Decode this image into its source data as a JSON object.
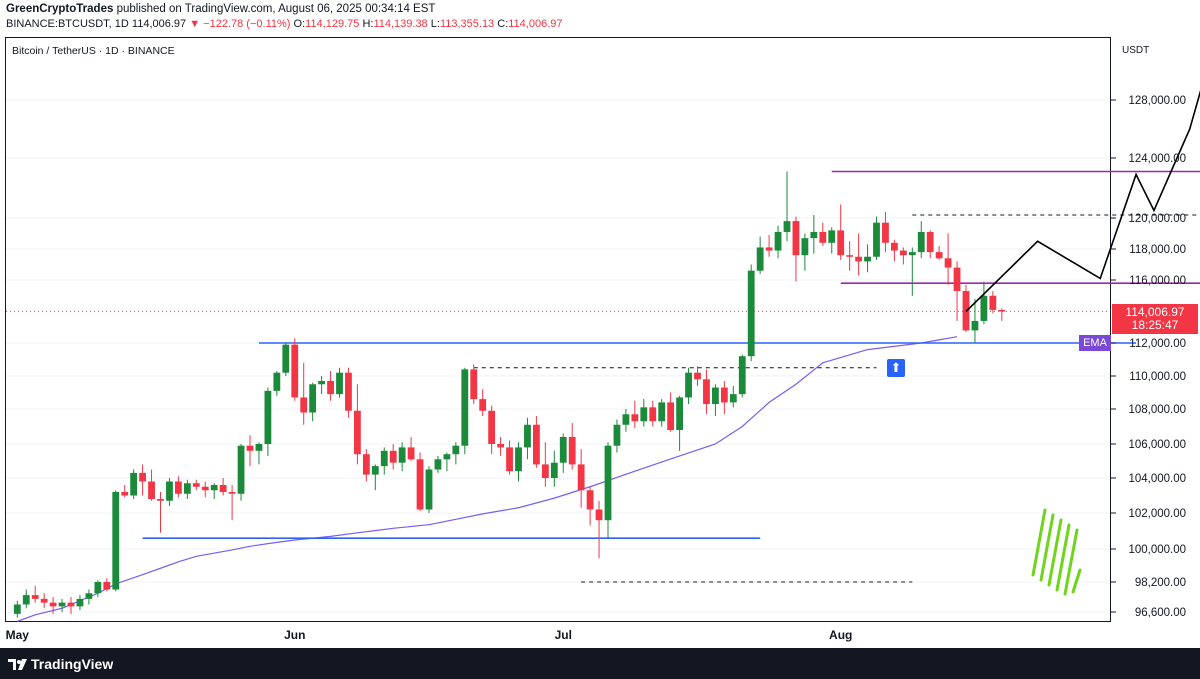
{
  "header": {
    "publisher": "GreenCryptoTrades",
    "published_text": "published on TradingView.com, August 06, 2025 00:34:14 EST",
    "symbol": "BINANCE:BTCUSDT, 1D",
    "last": "114,006.97",
    "change": "▼ −122.78 (−0.11%)",
    "o_label": "O:",
    "o_value": "114,129.75",
    "h_label": "H:",
    "h_value": "114,139.38",
    "l_label": "L:",
    "l_value": "113,355.13",
    "c_label": "C:",
    "c_value": "114,006.97"
  },
  "chart_title": "Bitcoin / TetherUS · 1D · BINANCE",
  "axis_unit": "USDT",
  "price_badge": {
    "price": "114,006.97",
    "countdown": "18:25:47"
  },
  "ema_label": "EMA",
  "footer_logo": "TradingView",
  "colors": {
    "up": "#26a69a",
    "down": "#f23645",
    "ema": "#7b5cf5",
    "levels": "#2962ff",
    "range": "#9c27b0",
    "projection": "#000000"
  },
  "chart_data": {
    "type": "candlestick",
    "y_ticks": [
      96600,
      98200,
      100000,
      102000,
      104000,
      106000,
      108000,
      110000,
      112000,
      116000,
      118000,
      120000,
      124000,
      128000
    ],
    "y_tick_labels": [
      "96,600.00",
      "98,200.00",
      "100,000.00",
      "102,000.00",
      "104,000.00",
      "106,000.00",
      "108,000.00",
      "110,000.00",
      "112,000.00",
      "116,000.00",
      "118,000.00",
      "120,000.00",
      "124,000.00",
      "128,000.00"
    ],
    "x_labels": [
      {
        "label": "May",
        "idx": 0
      },
      {
        "label": "Jun",
        "idx": 31
      },
      {
        "label": "Jul",
        "idx": 61
      },
      {
        "label": "Aug",
        "idx": 92
      }
    ],
    "candles": [
      [
        96500,
        97200,
        96300,
        97000
      ],
      [
        97000,
        97800,
        96800,
        97500
      ],
      [
        97500,
        98000,
        97100,
        97300
      ],
      [
        97300,
        97600,
        96800,
        97100
      ],
      [
        97100,
        97400,
        96500,
        96900
      ],
      [
        96900,
        97300,
        96600,
        97100
      ],
      [
        97100,
        97400,
        96500,
        96900
      ],
      [
        96900,
        97500,
        96700,
        97300
      ],
      [
        97300,
        97800,
        97000,
        97600
      ],
      [
        97600,
        98300,
        97400,
        98200
      ],
      [
        98200,
        98400,
        97700,
        97800
      ],
      [
        97800,
        103300,
        97700,
        103200
      ],
      [
        103200,
        103600,
        102900,
        103000
      ],
      [
        103000,
        104500,
        102800,
        104300
      ],
      [
        104300,
        104800,
        103000,
        103800
      ],
      [
        103800,
        104500,
        102700,
        102800
      ],
      [
        102800,
        103200,
        100900,
        102700
      ],
      [
        102700,
        104000,
        102400,
        103800
      ],
      [
        103800,
        104100,
        102900,
        103100
      ],
      [
        103100,
        103900,
        102800,
        103700
      ],
      [
        103700,
        103900,
        103300,
        103500
      ],
      [
        103500,
        103800,
        102900,
        103300
      ],
      [
        103300,
        103700,
        102800,
        103600
      ],
      [
        103600,
        104000,
        103000,
        103200
      ],
      [
        103200,
        103600,
        101600,
        103100
      ],
      [
        103100,
        106000,
        102700,
        105900
      ],
      [
        105900,
        106500,
        104700,
        105600
      ],
      [
        105600,
        106100,
        104800,
        106000
      ],
      [
        106000,
        109300,
        105300,
        109100
      ],
      [
        109100,
        110300,
        108800,
        110200
      ],
      [
        110200,
        112000,
        110000,
        111900
      ],
      [
        111900,
        112300,
        108500,
        108700
      ],
      [
        108700,
        110800,
        107100,
        107800
      ],
      [
        107800,
        109600,
        107300,
        109500
      ],
      [
        109500,
        110000,
        108900,
        109700
      ],
      [
        109700,
        110300,
        108500,
        108900
      ],
      [
        108900,
        110500,
        108700,
        110200
      ],
      [
        110200,
        110500,
        107500,
        107900
      ],
      [
        107900,
        109500,
        104800,
        105400
      ],
      [
        105400,
        105700,
        103800,
        104200
      ],
      [
        104200,
        104800,
        103300,
        104700
      ],
      [
        104700,
        105800,
        104200,
        105600
      ],
      [
        105600,
        106000,
        104500,
        104900
      ],
      [
        104900,
        106100,
        104400,
        105800
      ],
      [
        105800,
        106400,
        105000,
        105100
      ],
      [
        105100,
        105500,
        102100,
        102200
      ],
      [
        102200,
        104700,
        102000,
        104500
      ],
      [
        104500,
        105300,
        104300,
        105100
      ],
      [
        105100,
        105500,
        104400,
        105400
      ],
      [
        105400,
        106100,
        104800,
        105900
      ],
      [
        105900,
        110500,
        105400,
        110400
      ],
      [
        110400,
        110700,
        108300,
        108600
      ],
      [
        108600,
        109200,
        107600,
        107900
      ],
      [
        107900,
        108200,
        105400,
        106000
      ],
      [
        106000,
        106400,
        105300,
        105800
      ],
      [
        105800,
        106200,
        104200,
        104400
      ],
      [
        104400,
        106100,
        103800,
        105800
      ],
      [
        105800,
        107500,
        105100,
        107100
      ],
      [
        107100,
        107600,
        104600,
        104800
      ],
      [
        104800,
        106100,
        103500,
        104000
      ],
      [
        104000,
        105600,
        103500,
        104900
      ],
      [
        104900,
        106600,
        104300,
        106400
      ],
      [
        106400,
        107200,
        104500,
        104800
      ],
      [
        104800,
        105700,
        102300,
        103300
      ],
      [
        103300,
        103500,
        101300,
        102200
      ],
      [
        102200,
        102700,
        99500,
        101600
      ],
      [
        101600,
        106100,
        100600,
        105900
      ],
      [
        105900,
        107400,
        105500,
        107100
      ],
      [
        107100,
        108000,
        106700,
        107700
      ],
      [
        107700,
        108500,
        106900,
        107300
      ],
      [
        107300,
        108600,
        107000,
        108100
      ],
      [
        108100,
        108500,
        107000,
        107300
      ],
      [
        107300,
        108600,
        107000,
        108400
      ],
      [
        108400,
        109000,
        106700,
        106800
      ],
      [
        106800,
        108800,
        105600,
        108700
      ],
      [
        108700,
        110500,
        108300,
        110200
      ],
      [
        110200,
        110600,
        109400,
        109800
      ],
      [
        109800,
        110400,
        107700,
        108300
      ],
      [
        108300,
        109500,
        107600,
        109300
      ],
      [
        109300,
        109700,
        107700,
        108400
      ],
      [
        108400,
        109400,
        108100,
        108900
      ],
      [
        108900,
        111300,
        108700,
        111200
      ],
      [
        111200,
        117000,
        110900,
        116600
      ],
      [
        116600,
        118800,
        116400,
        118100
      ],
      [
        118100,
        118900,
        117500,
        117900
      ],
      [
        117900,
        119500,
        117400,
        119100
      ],
      [
        119100,
        123100,
        118500,
        119800
      ],
      [
        119800,
        120100,
        115900,
        117600
      ],
      [
        117600,
        119000,
        116600,
        118700
      ],
      [
        118700,
        120200,
        117700,
        119100
      ],
      [
        119100,
        119700,
        118200,
        118400
      ],
      [
        118400,
        119400,
        117700,
        119200
      ],
      [
        119200,
        120900,
        117300,
        117600
      ],
      [
        117600,
        118500,
        116600,
        117500
      ],
      [
        117500,
        119000,
        116300,
        117200
      ],
      [
        117200,
        118300,
        116500,
        117500
      ],
      [
        117500,
        120100,
        117300,
        119700
      ],
      [
        119700,
        120400,
        117800,
        118400
      ],
      [
        118400,
        118600,
        117200,
        117900
      ],
      [
        117900,
        118100,
        117000,
        117600
      ],
      [
        117600,
        118100,
        115000,
        117800
      ],
      [
        117800,
        119800,
        117400,
        119100
      ],
      [
        119100,
        119200,
        117400,
        117800
      ],
      [
        117800,
        118200,
        117300,
        117400
      ],
      [
        117400,
        119000,
        115700,
        116800
      ],
      [
        116800,
        117200,
        113400,
        115300
      ],
      [
        115300,
        115700,
        112700,
        112800
      ],
      [
        112800,
        114800,
        112000,
        113400
      ],
      [
        113400,
        115900,
        113200,
        115000
      ],
      [
        115000,
        115300,
        113900,
        114100
      ],
      [
        114100,
        114200,
        113400,
        114000
      ]
    ],
    "ema": [
      [
        0,
        96100
      ],
      [
        2,
        96450
      ],
      [
        5,
        96800
      ],
      [
        9,
        97600
      ],
      [
        11,
        98100
      ],
      [
        14,
        98600
      ],
      [
        16,
        98950
      ],
      [
        18,
        99300
      ],
      [
        20,
        99600
      ],
      [
        24,
        99950
      ],
      [
        26,
        100150
      ],
      [
        28,
        100300
      ],
      [
        31,
        100500
      ],
      [
        35,
        100700
      ],
      [
        38,
        100900
      ],
      [
        42,
        101150
      ],
      [
        46,
        101350
      ],
      [
        49,
        101650
      ],
      [
        52,
        101950
      ],
      [
        56,
        102300
      ],
      [
        60,
        102850
      ],
      [
        64,
        103500
      ],
      [
        69,
        104400
      ],
      [
        74,
        105300
      ],
      [
        78,
        106000
      ],
      [
        81,
        107000
      ],
      [
        84,
        108400
      ],
      [
        87,
        109500
      ],
      [
        90,
        110800
      ],
      [
        95,
        111600
      ],
      [
        101,
        112000
      ],
      [
        103,
        112200
      ],
      [
        105,
        112400
      ]
    ],
    "levels": [
      {
        "y": 112000,
        "x1": 27,
        "x2": 125,
        "style": "solid",
        "color": "#2962ff"
      },
      {
        "y": 100600,
        "x1": 14,
        "x2": 83,
        "style": "solid",
        "color": "#2962ff"
      },
      {
        "y": 110500,
        "x1": 51,
        "x2": 96,
        "style": "dashed",
        "color": "#131722"
      },
      {
        "y": 98200,
        "x1": 63,
        "x2": 100,
        "style": "dashed",
        "color": "#131722"
      },
      {
        "y": 120200,
        "x1": 100,
        "x2": 145,
        "style": "dashed",
        "color": "#131722"
      },
      {
        "y": 123100,
        "x1": 91,
        "x2": 137,
        "style": "solid",
        "color": "#9c27b0"
      },
      {
        "y": 115800,
        "x1": 92,
        "x2": 140,
        "style": "solid",
        "color": "#9c27b0"
      }
    ],
    "projection": [
      [
        106,
        114000
      ],
      [
        114,
        118500
      ],
      [
        121,
        116100
      ],
      [
        125,
        122900
      ],
      [
        127,
        120500
      ],
      [
        131,
        126000
      ],
      [
        133,
        130400
      ]
    ],
    "current_price": 114006.97
  }
}
